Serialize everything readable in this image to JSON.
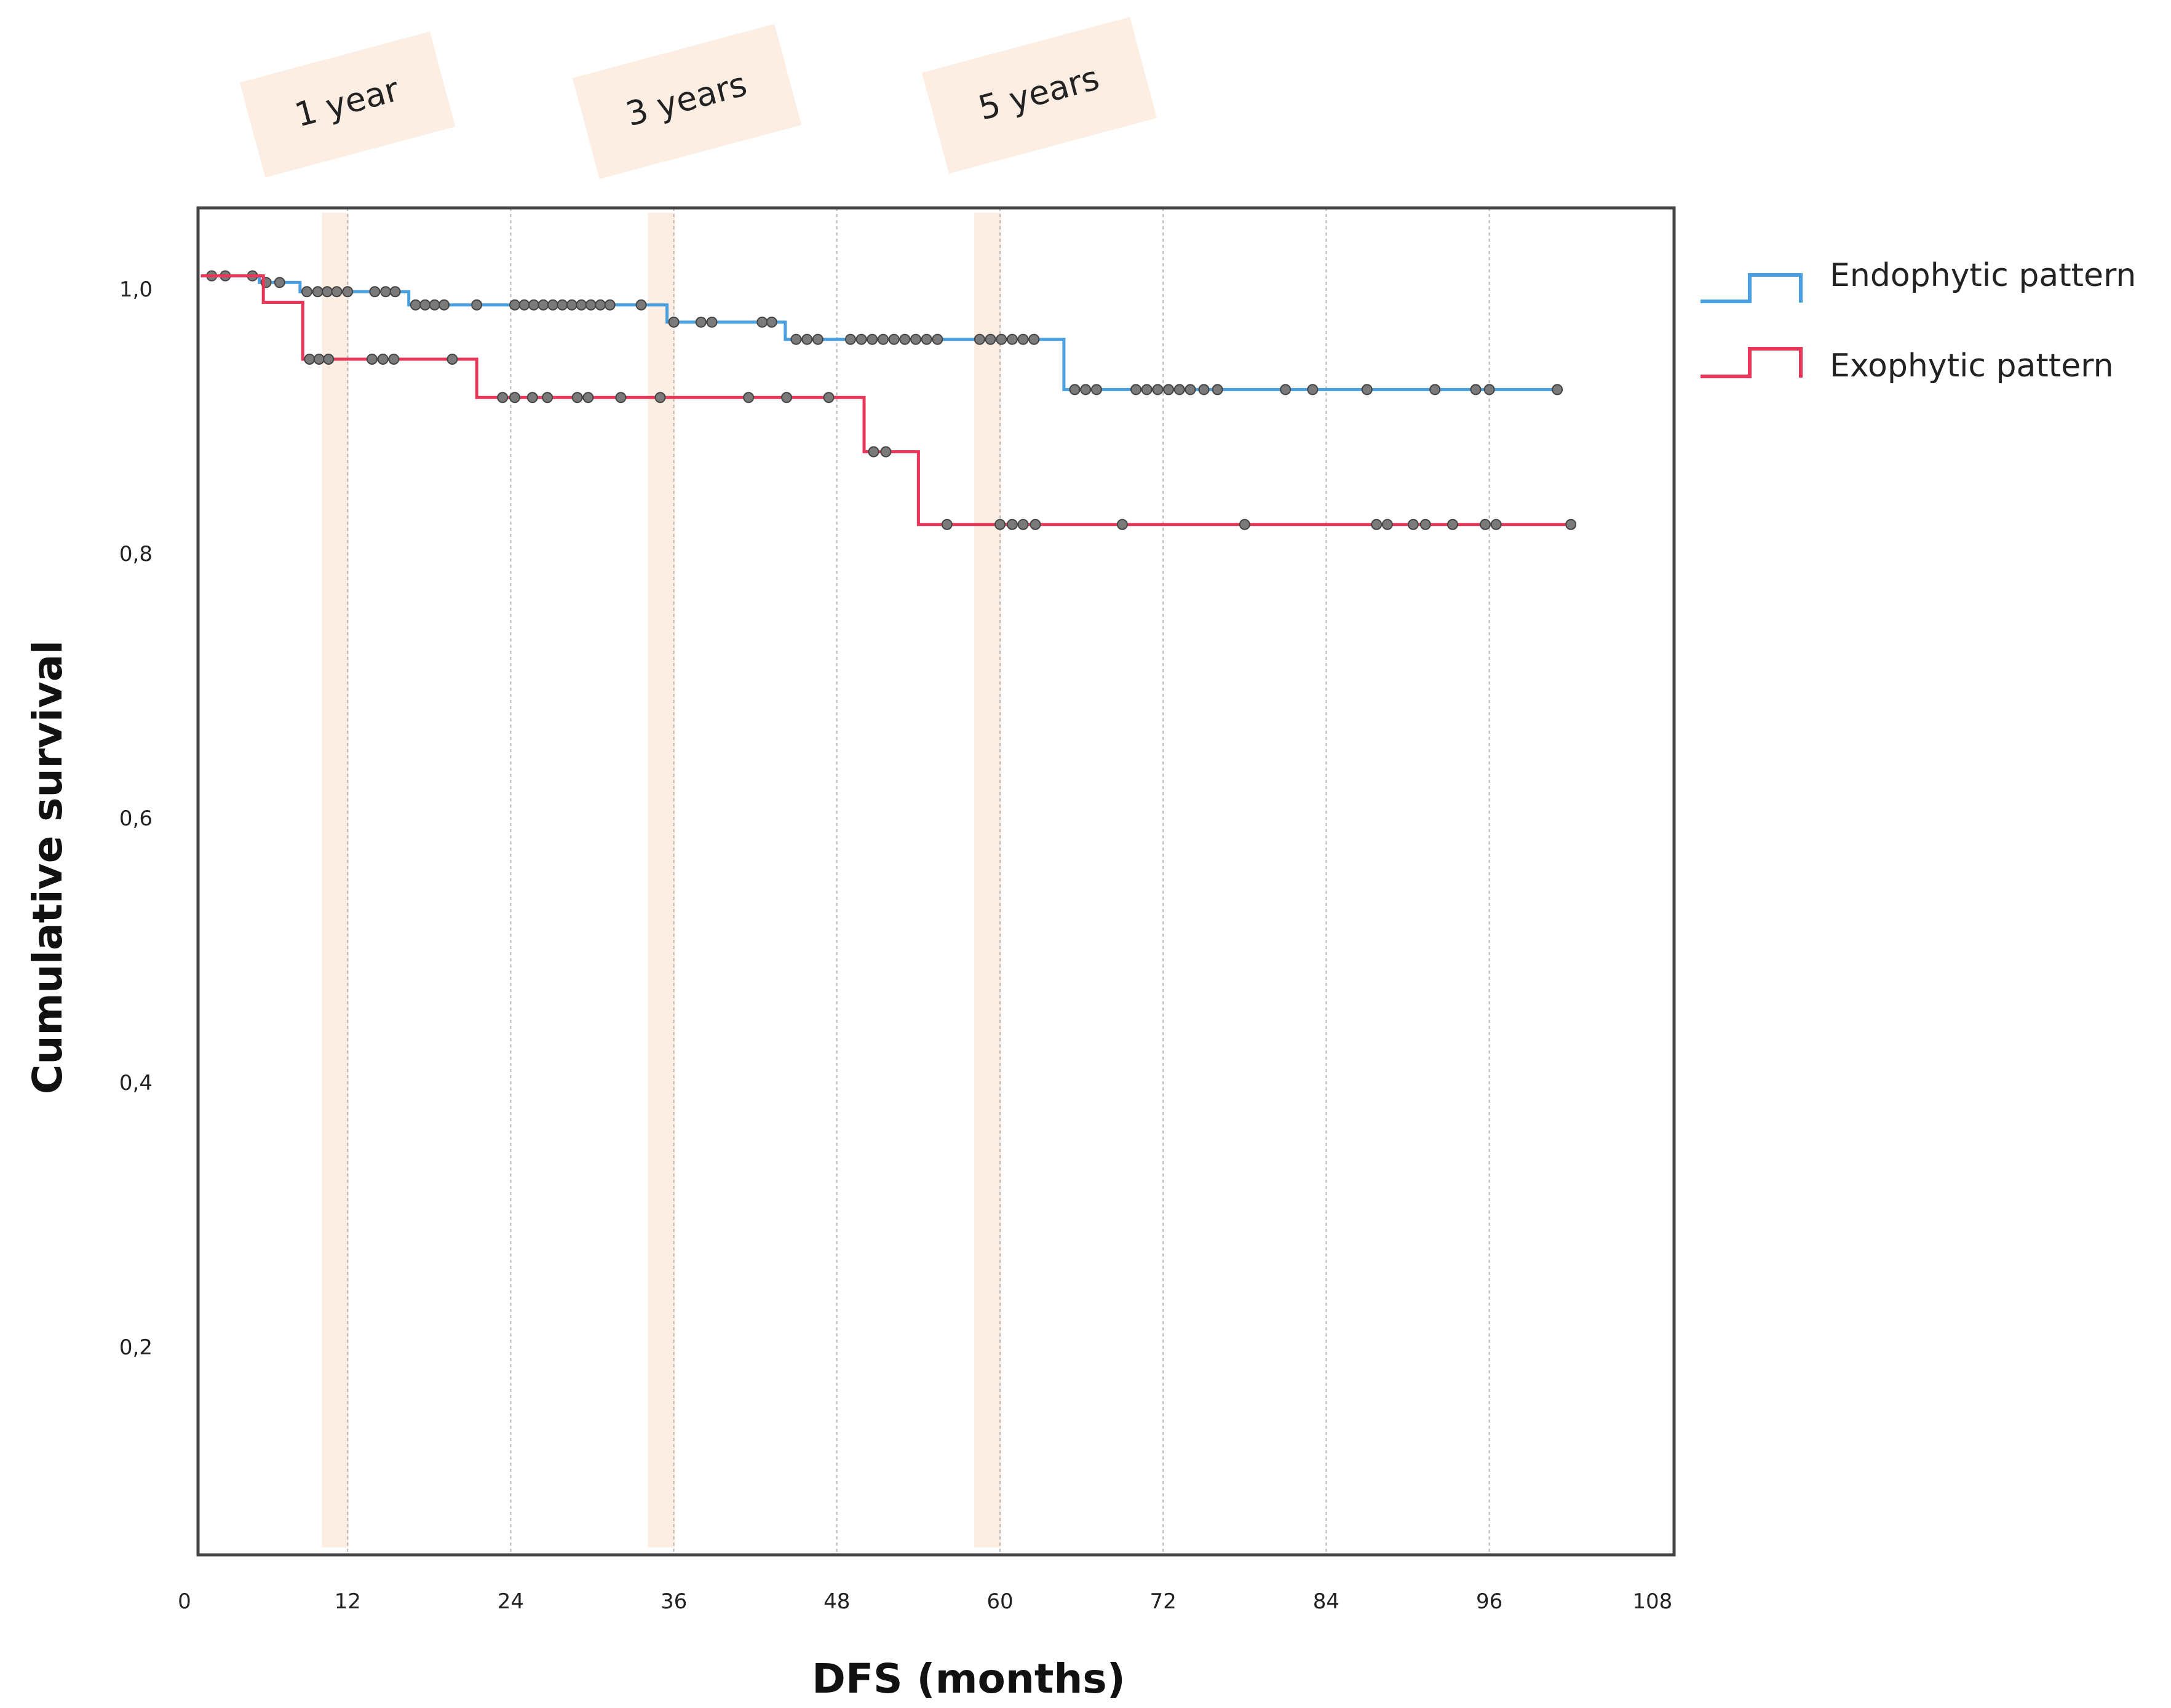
{
  "chart_data": {
    "type": "line",
    "subtype": "kaplan-meier-step",
    "title": "",
    "xlabel": "DFS (months)",
    "ylabel": "Cumulative survival",
    "xlim": [
      0,
      108
    ],
    "ylim": [
      0,
      1.05
    ],
    "x_ticks": [
      0,
      12,
      24,
      36,
      48,
      60,
      72,
      84,
      96,
      108
    ],
    "x_tick_labels": [
      "0",
      "12",
      "24",
      "36",
      "48",
      "60",
      "72",
      "84",
      "96",
      "108"
    ],
    "y_ticks": [
      0.2,
      0.4,
      0.6,
      0.8,
      1.0
    ],
    "y_tick_labels": [
      "0,2",
      "0,4",
      "0,6",
      "0,8",
      "1,0"
    ],
    "vertical_gridlines_at": [
      12,
      24,
      36,
      48,
      60,
      72,
      84,
      96
    ],
    "legend_position": "right-top",
    "milestones": [
      {
        "label": "1 year",
        "month": 12
      },
      {
        "label": "3 years",
        "month": 36
      },
      {
        "label": "5 years",
        "month": 60
      }
    ],
    "series": [
      {
        "name": "Endophytic pattern",
        "color": "#4a9fe0",
        "steps": [
          {
            "x": 1.2,
            "y": 1.01
          },
          {
            "x": 5.5,
            "y": 1.005
          },
          {
            "x": 8.5,
            "y": 0.998
          },
          {
            "x": 16.5,
            "y": 0.988
          },
          {
            "x": 35.5,
            "y": 0.975
          },
          {
            "x": 44.2,
            "y": 0.962
          },
          {
            "x": 64.7,
            "y": 0.924
          },
          {
            "x": 101,
            "y": 0.924
          }
        ],
        "censored": [
          2,
          3,
          5,
          6,
          7,
          9,
          9.8,
          10.5,
          11.2,
          12,
          14,
          14.8,
          15.5,
          17,
          17.7,
          18.4,
          19.1,
          21.5,
          24.3,
          25,
          25.7,
          26.4,
          27.1,
          27.8,
          28.5,
          29.2,
          29.9,
          30.6,
          31.3,
          33.6,
          36,
          38,
          38.8,
          42.5,
          43.2,
          45,
          45.8,
          46.6,
          49,
          49.8,
          50.6,
          51.4,
          52.2,
          53,
          53.8,
          54.6,
          55.4,
          58.5,
          59.3,
          60.1,
          60.9,
          61.7,
          62.5,
          65.5,
          66.3,
          67.1,
          70,
          70.8,
          71.6,
          72.4,
          73.2,
          74,
          75,
          76,
          81,
          83,
          87,
          92,
          95,
          96,
          101
        ]
      },
      {
        "name": "Exophytic pattern",
        "color": "#e8385a",
        "steps": [
          {
            "x": 1.2,
            "y": 1.01
          },
          {
            "x": 5.8,
            "y": 0.99
          },
          {
            "x": 8.7,
            "y": 0.947
          },
          {
            "x": 21.5,
            "y": 0.918
          },
          {
            "x": 50.0,
            "y": 0.877
          },
          {
            "x": 54.0,
            "y": 0.822
          },
          {
            "x": 102,
            "y": 0.822
          }
        ],
        "censored": [
          9.2,
          9.9,
          10.6,
          13.8,
          14.6,
          15.4,
          19.7,
          23.4,
          24.3,
          25.6,
          26.7,
          28.9,
          29.7,
          32.1,
          35,
          41.5,
          44.3,
          47.4,
          50.7,
          51.6,
          56.1,
          60,
          60.9,
          61.7,
          62.6,
          69,
          78,
          87.7,
          88.5,
          90.4,
          91.3,
          93.3,
          95.7,
          96.5,
          102
        ]
      }
    ]
  }
}
